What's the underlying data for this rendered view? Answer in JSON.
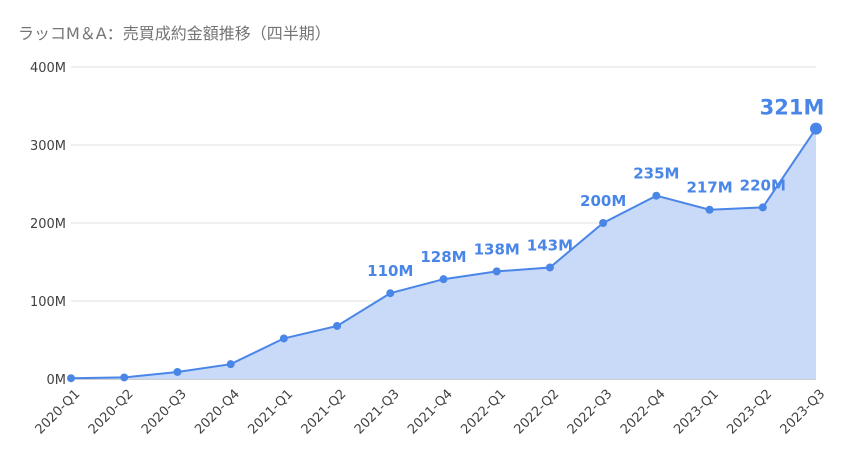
{
  "chart_data": {
    "type": "area",
    "title": "ラッコM＆A：売買成約金額推移（四半期）",
    "xlabel": "",
    "ylabel": "",
    "ylim": [
      0,
      400
    ],
    "y_ticks": [
      "0M",
      "100M",
      "200M",
      "300M",
      "400M"
    ],
    "categories": [
      "2020-Q1",
      "2020-Q2",
      "2020-Q3",
      "2020-Q4",
      "2021-Q1",
      "2021-Q2",
      "2021-Q3",
      "2021-Q4",
      "2022-Q1",
      "2022-Q2",
      "2022-Q3",
      "2022-Q4",
      "2023-Q1",
      "2023-Q2",
      "2023-Q3"
    ],
    "values": [
      1,
      2,
      9,
      19,
      52,
      68,
      110,
      128,
      138,
      143,
      200,
      235,
      217,
      220,
      321
    ],
    "data_labels": [
      "",
      "",
      "",
      "",
      "",
      "",
      "110M",
      "128M",
      "138M",
      "143M",
      "200M",
      "235M",
      "217M",
      "220M",
      "321M"
    ],
    "grid": true,
    "line_color": "#4a86e8",
    "fill_color": "#c9daf8"
  }
}
